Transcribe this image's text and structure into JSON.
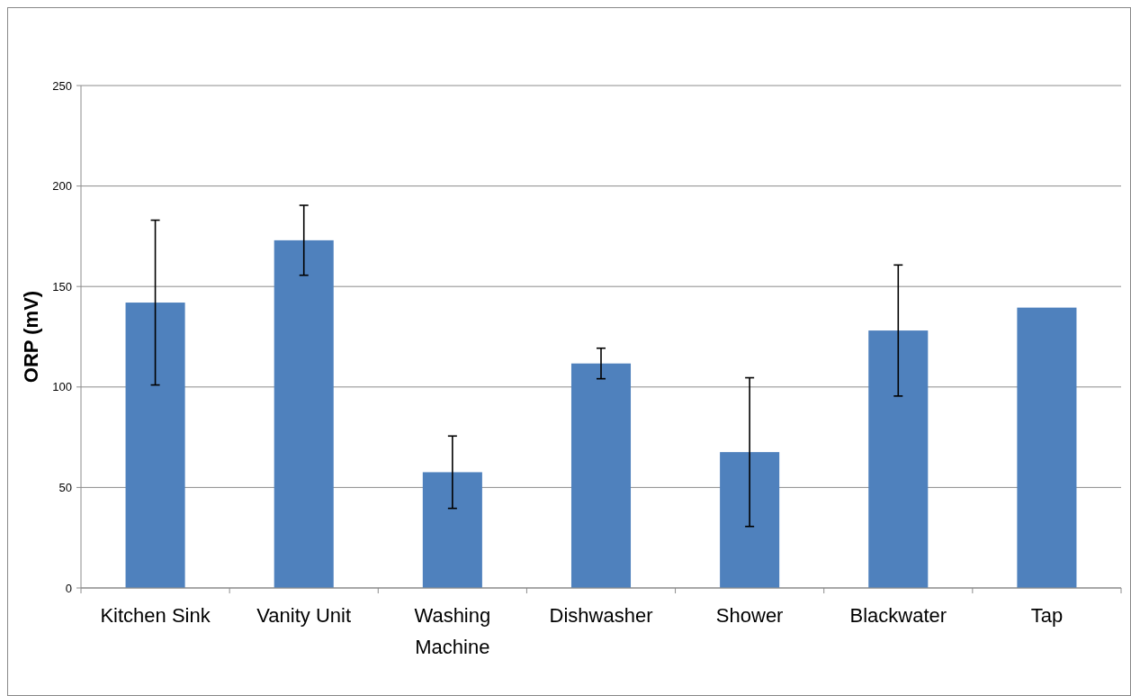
{
  "chart_data": {
    "type": "bar",
    "ylabel": "ORP (mV)",
    "categories": [
      "Kitchen Sink",
      "Vanity Unit",
      "Washing Machine",
      "Dishwasher",
      "Shower",
      "Blackwater",
      "Tap"
    ],
    "values": [
      142,
      173,
      57.6,
      111.7,
      67.6,
      128.1,
      139.5
    ],
    "errors": [
      41,
      17.4,
      18,
      7.6,
      37,
      32.6,
      null
    ],
    "color": "#4f81bd",
    "ylim": [
      0,
      250
    ],
    "yticks": [
      0,
      50,
      100,
      150,
      200,
      250
    ],
    "grid": "y"
  }
}
